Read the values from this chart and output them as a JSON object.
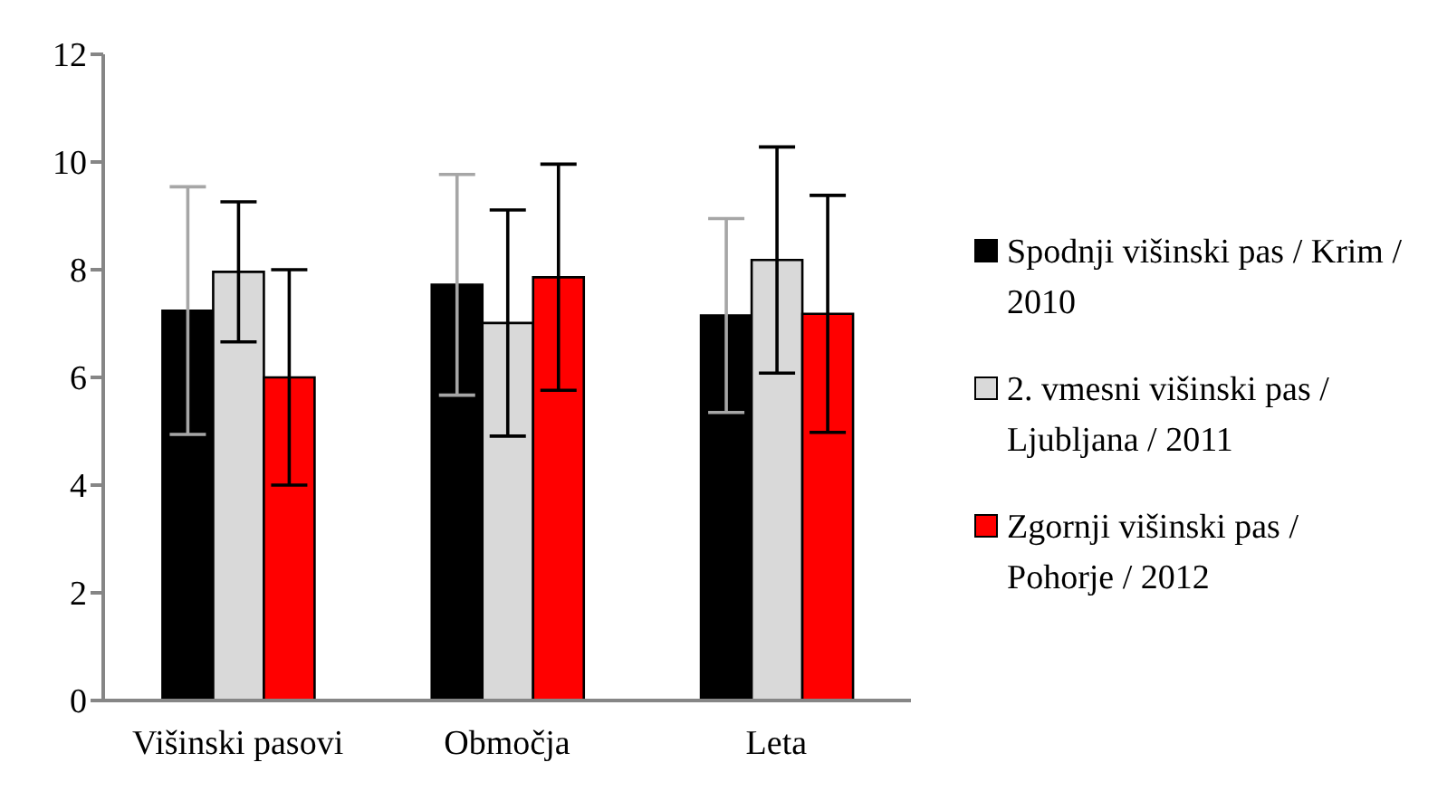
{
  "chart_data": {
    "type": "bar",
    "categories": [
      "Višinski pasovi",
      "Območja",
      "Leta"
    ],
    "series": [
      {
        "name": "Spodnji višinski pas / Krim / 2010",
        "color": "#000000",
        "values": [
          7.24,
          7.72,
          7.15
        ],
        "errors": [
          2.3,
          2.05,
          1.8
        ]
      },
      {
        "name": "2. vmesni višinski pas / Ljubljana / 2011",
        "color": "#d9d9d9",
        "values": [
          7.96,
          7.01,
          8.18
        ],
        "errors": [
          1.3,
          2.1,
          2.1
        ]
      },
      {
        "name": "Zgornji višinski pas / Pohorje / 2012",
        "color": "#ff0000",
        "values": [
          6.0,
          7.86,
          7.18
        ],
        "errors": [
          2.0,
          2.1,
          2.2
        ]
      }
    ],
    "ylim": [
      0,
      12
    ],
    "yticks": [
      0,
      2,
      4,
      6,
      8,
      10,
      12
    ],
    "grid": false,
    "legend": "right"
  }
}
